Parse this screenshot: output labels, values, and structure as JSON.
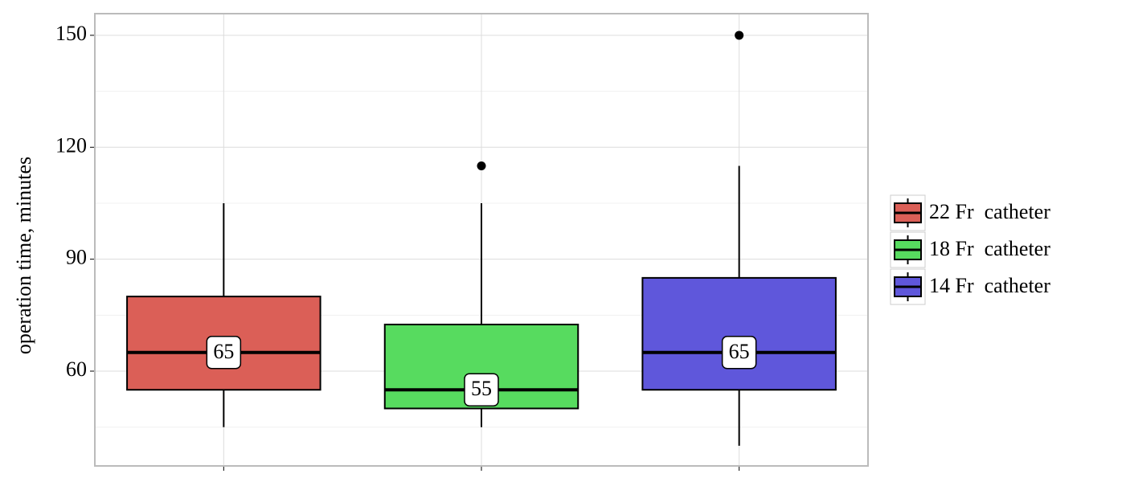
{
  "chart_data": {
    "type": "box",
    "y_label": "operation time, minutes",
    "categories": [
      null,
      null,
      null
    ],
    "series": [
      {
        "name": "22 Fr  catheter",
        "color": "#db5f57",
        "min": 45,
        "q1": 55,
        "median": 65,
        "q3": 80,
        "max": 105,
        "outliers": []
      },
      {
        "name": "18 Fr  catheter",
        "color": "#57db5f",
        "min": 45,
        "q1": 50,
        "median": 55,
        "q3": 72.5,
        "max": 105,
        "outliers": [
          115
        ]
      },
      {
        "name": "14 Fr  catheter",
        "color": "#5f57db",
        "min": 40,
        "q1": 55,
        "median": 65,
        "q3": 85,
        "max": 115,
        "outliers": [
          150
        ]
      }
    ],
    "ylim": [
      34.6,
      155.8
    ],
    "yticks": [
      60,
      90,
      120,
      150
    ],
    "y_minor_grid": [
      45,
      75,
      105,
      135
    ],
    "grid": true,
    "legend": "right"
  }
}
